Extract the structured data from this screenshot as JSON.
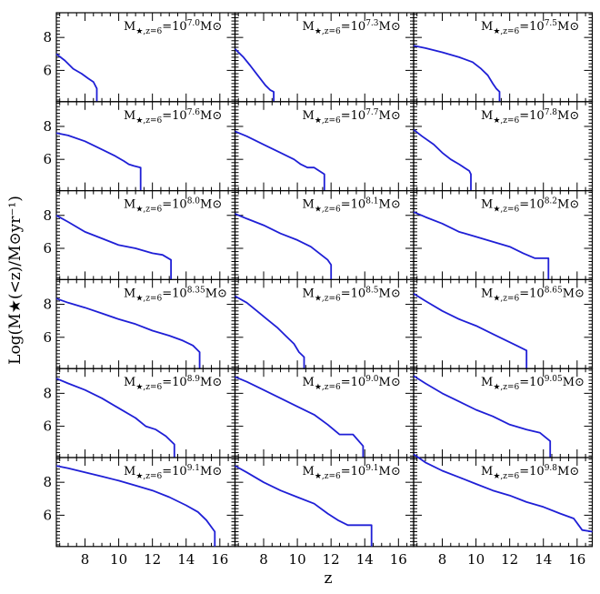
{
  "figure": {
    "xlabel": "z",
    "ylabel": "Log(M★(<z)/M⊙yr⁻¹)",
    "x_ticks": [
      "8",
      "10",
      "12",
      "14",
      "16"
    ],
    "y_ticks": [
      "6",
      "8"
    ],
    "curve_color": "#1f1fd6"
  },
  "chart_data": [
    {
      "type": "line",
      "panel_label": "M★,z=6=10^7.0M⊙",
      "label_base": "M",
      "label_sub": "★,z=6",
      "label_mid": "=10",
      "label_exp": "7.0",
      "label_unit": "M⊙",
      "xlim": [
        6.3,
        16.9
      ],
      "ylim": [
        4.1,
        9.5
      ],
      "x": [
        6.3,
        6.8,
        7.3,
        7.8,
        8.2,
        8.5,
        8.7,
        8.7
      ],
      "y": [
        7.0,
        6.6,
        6.1,
        5.8,
        5.5,
        5.3,
        4.9,
        4.1
      ]
    },
    {
      "type": "line",
      "panel_label": "M★,z=6=10^7.3M⊙",
      "label_base": "M",
      "label_sub": "★,z=6",
      "label_mid": "=10",
      "label_exp": "7.3",
      "label_unit": "M⊙",
      "xlim": [
        6.3,
        16.9
      ],
      "ylim": [
        4.1,
        9.5
      ],
      "x": [
        6.3,
        6.8,
        7.2,
        7.5,
        7.8,
        8.1,
        8.4,
        8.6,
        8.6
      ],
      "y": [
        7.3,
        6.8,
        6.3,
        5.9,
        5.5,
        5.1,
        4.8,
        4.7,
        4.1
      ]
    },
    {
      "type": "line",
      "panel_label": "M★,z=6=10^7.5M⊙",
      "label_base": "M",
      "label_sub": "★,z=6",
      "label_mid": "=10",
      "label_exp": "7.5",
      "label_unit": "M⊙",
      "xlim": [
        6.3,
        16.9
      ],
      "ylim": [
        4.1,
        9.5
      ],
      "x": [
        6.3,
        7.0,
        8.0,
        9.0,
        9.8,
        10.3,
        10.7,
        11.0,
        11.2,
        11.4,
        11.4
      ],
      "y": [
        7.5,
        7.35,
        7.1,
        6.8,
        6.5,
        6.1,
        5.7,
        5.2,
        4.9,
        4.7,
        4.1
      ]
    },
    {
      "type": "line",
      "panel_label": "M★,z=6=10^7.6M⊙",
      "label_base": "M",
      "label_sub": "★,z=6",
      "label_mid": "=10",
      "label_exp": "7.6",
      "label_unit": "M⊙",
      "xlim": [
        6.3,
        16.9
      ],
      "ylim": [
        4.1,
        9.5
      ],
      "x": [
        6.3,
        7.0,
        8.0,
        9.0,
        9.8,
        10.3,
        10.6,
        10.9,
        11.3,
        11.3
      ],
      "y": [
        7.6,
        7.45,
        7.1,
        6.6,
        6.2,
        5.9,
        5.7,
        5.6,
        5.5,
        4.1
      ]
    },
    {
      "type": "line",
      "panel_label": "M★,z=6=10^7.7M⊙",
      "label_base": "M",
      "label_sub": "★,z=6",
      "label_mid": "=10",
      "label_exp": "7.7",
      "label_unit": "M⊙",
      "xlim": [
        6.3,
        16.9
      ],
      "ylim": [
        4.1,
        9.5
      ],
      "x": [
        6.3,
        7.0,
        8.0,
        9.0,
        9.8,
        10.2,
        10.6,
        11.0,
        11.6,
        11.6
      ],
      "y": [
        7.7,
        7.4,
        6.9,
        6.4,
        6.0,
        5.7,
        5.5,
        5.5,
        5.1,
        4.1
      ]
    },
    {
      "type": "line",
      "panel_label": "M★,z=6=10^7.8M⊙",
      "label_base": "M",
      "label_sub": "★,z=6",
      "label_mid": "=10",
      "label_exp": "7.8",
      "label_unit": "M⊙",
      "xlim": [
        6.3,
        16.9
      ],
      "ylim": [
        4.1,
        9.5
      ],
      "x": [
        6.3,
        6.8,
        7.5,
        8.0,
        8.5,
        9.0,
        9.3,
        9.6,
        9.7,
        9.7
      ],
      "y": [
        7.8,
        7.4,
        6.9,
        6.4,
        6.0,
        5.7,
        5.5,
        5.3,
        5.1,
        4.1
      ]
    },
    {
      "type": "line",
      "panel_label": "M★,z=6=10^8.0M⊙",
      "label_base": "M",
      "label_sub": "★,z=6",
      "label_mid": "=10",
      "label_exp": "8.0",
      "label_unit": "M⊙",
      "xlim": [
        6.3,
        16.9
      ],
      "ylim": [
        4.1,
        9.5
      ],
      "x": [
        6.3,
        7.0,
        8.0,
        9.0,
        10.0,
        11.0,
        12.0,
        12.6,
        13.1,
        13.1
      ],
      "y": [
        8.0,
        7.6,
        7.0,
        6.6,
        6.2,
        6.0,
        5.7,
        5.6,
        5.3,
        4.1
      ]
    },
    {
      "type": "line",
      "panel_label": "M★,z=6=10^8.1M⊙",
      "label_base": "M",
      "label_sub": "★,z=6",
      "label_mid": "=10",
      "label_exp": "8.1",
      "label_unit": "M⊙",
      "xlim": [
        6.3,
        16.9
      ],
      "ylim": [
        4.1,
        9.5
      ],
      "x": [
        6.3,
        7.0,
        8.0,
        9.0,
        10.0,
        10.8,
        11.3,
        11.8,
        12.0,
        12.0
      ],
      "y": [
        8.1,
        7.8,
        7.4,
        6.9,
        6.5,
        6.1,
        5.7,
        5.3,
        5.0,
        4.1
      ]
    },
    {
      "type": "line",
      "panel_label": "M★,z=6=10^8.2M⊙",
      "label_base": "M",
      "label_sub": "★,z=6",
      "label_mid": "=10",
      "label_exp": "8.2",
      "label_unit": "M⊙",
      "xlim": [
        6.3,
        16.9
      ],
      "ylim": [
        4.1,
        9.5
      ],
      "x": [
        6.3,
        7.0,
        8.0,
        9.0,
        10.0,
        11.0,
        12.0,
        12.8,
        13.5,
        14.3,
        14.3
      ],
      "y": [
        8.2,
        7.9,
        7.5,
        7.0,
        6.7,
        6.4,
        6.1,
        5.7,
        5.4,
        5.4,
        4.1
      ]
    },
    {
      "type": "line",
      "panel_label": "M★,z=6=10^8.35M⊙",
      "label_base": "M",
      "label_sub": "★,z=6",
      "label_mid": "=10",
      "label_exp": "8.35",
      "label_unit": "M⊙",
      "xlim": [
        6.3,
        16.9
      ],
      "ylim": [
        4.1,
        9.5
      ],
      "x": [
        6.3,
        7.0,
        8.0,
        9.0,
        10.0,
        11.0,
        12.0,
        13.0,
        13.8,
        14.4,
        14.8,
        14.8
      ],
      "y": [
        8.35,
        8.1,
        7.8,
        7.45,
        7.1,
        6.8,
        6.4,
        6.1,
        5.8,
        5.5,
        5.1,
        4.1
      ]
    },
    {
      "type": "line",
      "panel_label": "M★,z=6=10^8.5M⊙",
      "label_base": "M",
      "label_sub": "★,z=6",
      "label_mid": "=10",
      "label_exp": "8.5",
      "label_unit": "M⊙",
      "xlim": [
        6.3,
        16.9
      ],
      "ylim": [
        4.1,
        9.5
      ],
      "x": [
        6.3,
        7.0,
        7.6,
        8.2,
        8.8,
        9.3,
        9.8,
        10.1,
        10.4,
        10.4
      ],
      "y": [
        8.5,
        8.1,
        7.6,
        7.1,
        6.6,
        6.1,
        5.6,
        5.1,
        4.8,
        4.1
      ]
    },
    {
      "type": "line",
      "panel_label": "M★,z=6=10^8.65M⊙",
      "label_base": "M",
      "label_sub": "★,z=6",
      "label_mid": "=10",
      "label_exp": "8.65",
      "label_unit": "M⊙",
      "xlim": [
        6.3,
        16.9
      ],
      "ylim": [
        4.1,
        9.5
      ],
      "x": [
        6.3,
        7.0,
        8.0,
        9.0,
        10.0,
        11.0,
        11.8,
        12.4,
        13.0,
        13.0
      ],
      "y": [
        8.65,
        8.2,
        7.6,
        7.1,
        6.7,
        6.2,
        5.8,
        5.5,
        5.2,
        4.1
      ]
    },
    {
      "type": "line",
      "panel_label": "M★,z=6=10^8.9M⊙",
      "label_base": "M",
      "label_sub": "★,z=6",
      "label_mid": "=10",
      "label_exp": "8.9",
      "label_unit": "M⊙",
      "xlim": [
        6.3,
        16.9
      ],
      "ylim": [
        4.1,
        9.5
      ],
      "x": [
        6.3,
        7.0,
        8.0,
        9.0,
        10.0,
        11.0,
        11.6,
        12.2,
        12.8,
        13.3,
        13.3
      ],
      "y": [
        8.9,
        8.6,
        8.2,
        7.7,
        7.1,
        6.5,
        6.0,
        5.8,
        5.4,
        4.9,
        4.1
      ]
    },
    {
      "type": "line",
      "panel_label": "M★,z=6=10^9.0M⊙",
      "label_base": "M",
      "label_sub": "★,z=6",
      "label_mid": "=10",
      "label_exp": "9.0",
      "label_unit": "M⊙",
      "xlim": [
        6.3,
        16.9
      ],
      "ylim": [
        4.1,
        9.5
      ],
      "x": [
        6.3,
        7.0,
        8.0,
        9.0,
        10.0,
        11.0,
        11.8,
        12.5,
        13.3,
        13.9,
        13.9
      ],
      "y": [
        9.0,
        8.7,
        8.2,
        7.7,
        7.2,
        6.7,
        6.1,
        5.5,
        5.5,
        4.8,
        4.1
      ]
    },
    {
      "type": "line",
      "panel_label": "M★,z=6=10^9.05M⊙",
      "label_base": "M",
      "label_sub": "★,z=6",
      "label_mid": "=10",
      "label_exp": "9.05",
      "label_unit": "M⊙",
      "xlim": [
        6.3,
        16.9
      ],
      "ylim": [
        4.1,
        9.5
      ],
      "x": [
        6.3,
        7.0,
        8.0,
        9.0,
        10.0,
        11.0,
        12.0,
        13.0,
        13.8,
        14.4,
        14.4
      ],
      "y": [
        9.05,
        8.6,
        8.0,
        7.5,
        7.0,
        6.6,
        6.1,
        5.8,
        5.6,
        5.1,
        4.1
      ]
    },
    {
      "type": "line",
      "panel_label": "M★,z=6=10^9.1M⊙",
      "label_base": "M",
      "label_sub": "★,z=6",
      "label_mid": "=10",
      "label_exp": "9.1",
      "label_unit": "M⊙",
      "xlim": [
        6.3,
        16.9
      ],
      "ylim": [
        4.1,
        9.5
      ],
      "x": [
        6.3,
        7.0,
        8.0,
        9.0,
        10.0,
        11.0,
        12.0,
        13.0,
        14.0,
        14.7,
        15.2,
        15.7,
        15.7
      ],
      "y": [
        9.0,
        8.85,
        8.6,
        8.35,
        8.1,
        7.8,
        7.5,
        7.1,
        6.6,
        6.2,
        5.7,
        5.0,
        4.1
      ]
    },
    {
      "type": "line",
      "panel_label": "M★,z=6=10^9.1M⊙",
      "label_base": "M",
      "label_sub": "★,z=6",
      "label_mid": "=10",
      "label_exp": "9.1",
      "label_unit": "M⊙",
      "xlim": [
        6.3,
        16.9
      ],
      "ylim": [
        4.1,
        9.5
      ],
      "x": [
        6.3,
        7.0,
        8.0,
        9.0,
        10.0,
        11.0,
        11.8,
        12.4,
        13.0,
        14.4,
        14.4
      ],
      "y": [
        9.0,
        8.6,
        8.0,
        7.5,
        7.1,
        6.7,
        6.1,
        5.7,
        5.4,
        5.4,
        4.1
      ]
    },
    {
      "type": "line",
      "panel_label": "M★,z=6=10^9.8M⊙",
      "label_base": "M",
      "label_sub": "★,z=6",
      "label_mid": "=10",
      "label_exp": "9.8",
      "label_unit": "M⊙",
      "xlim": [
        6.3,
        16.9
      ],
      "ylim": [
        4.1,
        9.5
      ],
      "x": [
        6.3,
        7.0,
        8.0,
        9.0,
        10.0,
        11.0,
        12.0,
        13.0,
        14.0,
        15.0,
        15.8,
        16.3,
        16.9
      ],
      "y": [
        9.7,
        9.2,
        8.7,
        8.3,
        7.9,
        7.5,
        7.2,
        6.8,
        6.5,
        6.1,
        5.8,
        5.1,
        5.0
      ]
    }
  ]
}
